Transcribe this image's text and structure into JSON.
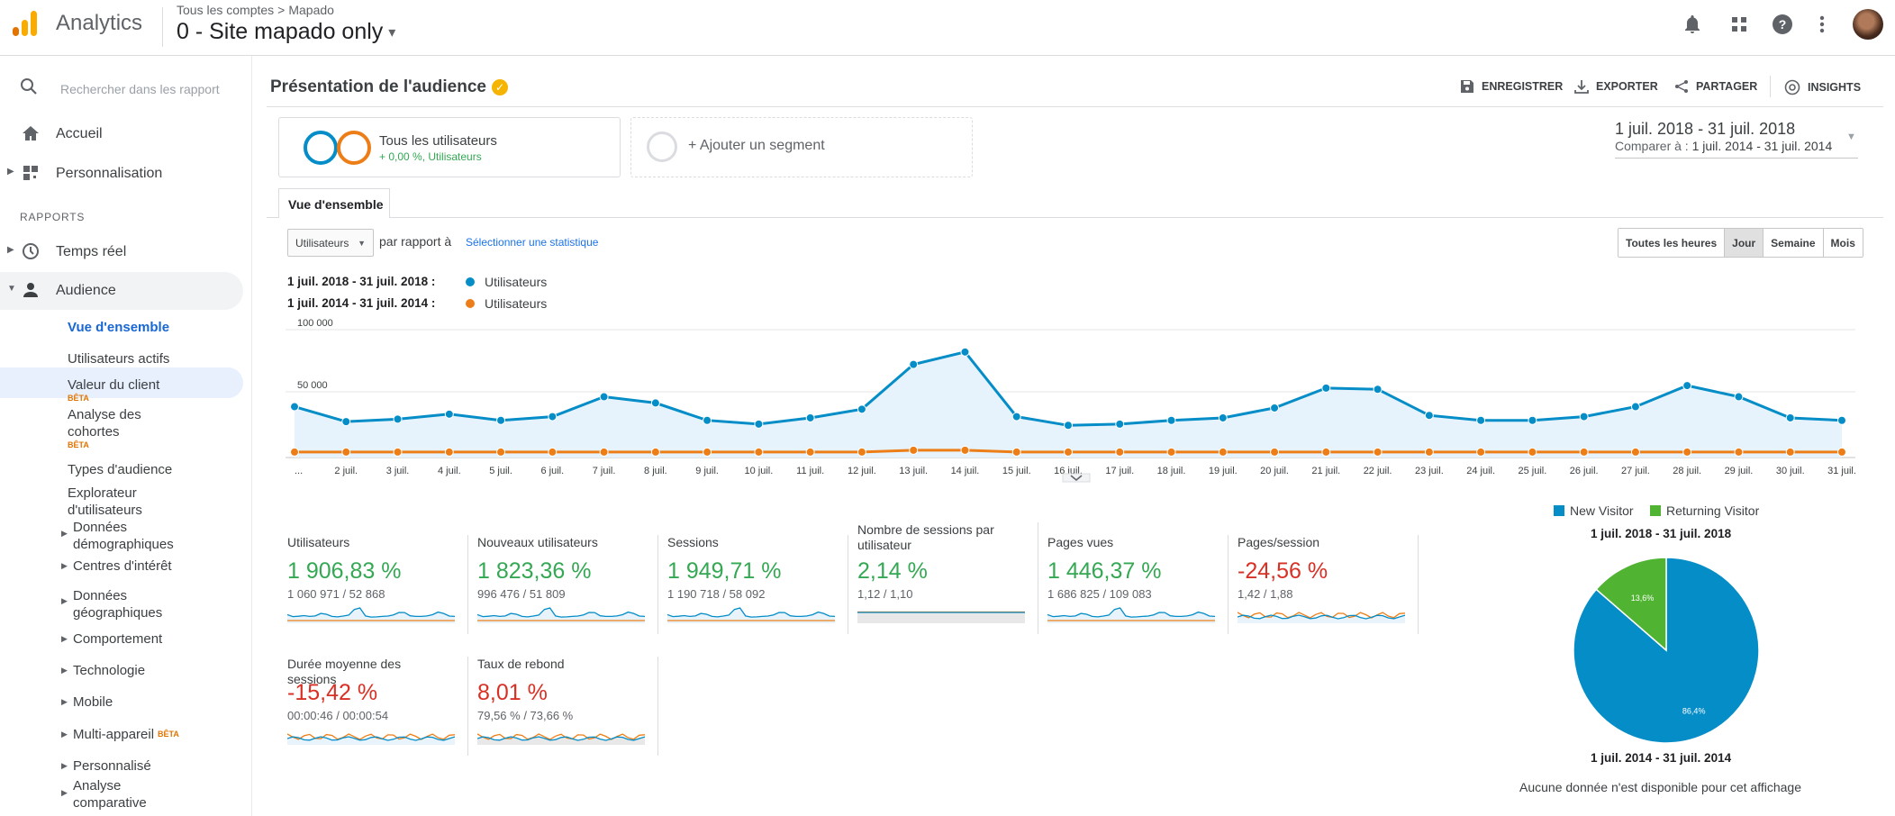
{
  "header": {
    "app_name": "Analytics",
    "breadcrumb": [
      "Tous les comptes",
      "Mapado"
    ],
    "property": "0 - Site mapado only"
  },
  "sidebar": {
    "search_placeholder": "Rechercher dans les rapport",
    "home": "Accueil",
    "personalisation": "Personnalisation",
    "section_reports": "RAPPORTS",
    "realtime": "Temps réel",
    "audience": "Audience",
    "audience_items": {
      "overview": "Vue d'ensemble",
      "active_users": "Utilisateurs actifs",
      "ltv": "Valeur du client",
      "cohort_1": "Analyse des",
      "cohort_2": "cohortes",
      "audiences": "Types d'audience",
      "explorer_1": "Explorateur",
      "explorer_2": "d'utilisateurs",
      "demographics_1": "Données",
      "demographics_2": "démographiques",
      "interests": "Centres d'intérêt",
      "geo_1": "Données",
      "geo_2": "géographiques",
      "behavior": "Comportement",
      "technology": "Technologie",
      "mobile": "Mobile",
      "multi_device": "Multi-appareil",
      "custom": "Personnalisé",
      "benchmark_1": "Analyse",
      "benchmark_2": "comparative"
    },
    "beta_label": "BÊTA"
  },
  "main": {
    "title": "Présentation de l'audience",
    "actions": {
      "save": "ENREGISTRER",
      "export": "EXPORTER",
      "share": "PARTAGER",
      "insights": "INSIGHTS"
    },
    "segment": {
      "name": "Tous les utilisateurs",
      "sub": "+ 0,00 %, Utilisateurs",
      "add": "+ Ajouter un segment"
    },
    "date": {
      "range": "1 juil. 2018 - 31 juil. 2018",
      "compare_prefix": "Comparer à :",
      "compare_range": "1 juil. 2014 - 31 juil. 2014"
    },
    "tab": "Vue d'ensemble",
    "metric_select": "Utilisateurs",
    "vs_label": "par rapport à",
    "select_stat": "Sélectionner une statistique",
    "granularity": [
      "Toutes les heures",
      "Jour",
      "Semaine",
      "Mois"
    ],
    "granularity_selected": "Jour",
    "legend": [
      {
        "range": "1 juil. 2018 - 31 juil. 2018 :",
        "label": "Utilisateurs",
        "color": "#058dc7"
      },
      {
        "range": "1 juil. 2014 - 31 juil. 2014 :",
        "label": "Utilisateurs",
        "color": "#ed7e17"
      }
    ]
  },
  "chart_data": {
    "type": "line",
    "ytick_labels": [
      "100 000",
      "50 000"
    ],
    "ylim": [
      0,
      100000
    ],
    "x": [
      "...",
      "2 juil.",
      "3 juil.",
      "4 juil.",
      "5 juil.",
      "6 juil.",
      "7 juil.",
      "8 juil.",
      "9 juil.",
      "10 juil.",
      "11 juil.",
      "12 juil.",
      "13 juil.",
      "14 juil.",
      "15 juil.",
      "16 juil.",
      "17 juil.",
      "18 juil.",
      "19 juil.",
      "20 juil.",
      "21 juil.",
      "22 juil.",
      "23 juil.",
      "24 juil.",
      "25 juil.",
      "26 juil.",
      "27 juil.",
      "28 juil.",
      "29 juil.",
      "30 juil.",
      "31 juil."
    ],
    "series": [
      {
        "values": [
          38000,
          26000,
          28000,
          32000,
          27000,
          30000,
          46000,
          41000,
          27000,
          24000,
          29000,
          36000,
          72000,
          82000,
          30000,
          23000,
          24000,
          27000,
          29000,
          37000,
          53000,
          52000,
          31000,
          27000,
          27000,
          30000,
          38000,
          55000,
          46000,
          29000,
          27000
        ],
        "color": "#058dc7"
      },
      {
        "values": [
          1500,
          1500,
          1500,
          1500,
          1500,
          1500,
          1500,
          1500,
          1500,
          1500,
          1500,
          1500,
          3000,
          3000,
          1500,
          1500,
          1500,
          1500,
          1500,
          1500,
          1500,
          1500,
          1500,
          1500,
          1500,
          1500,
          1500,
          1500,
          1500,
          1500,
          1500
        ],
        "color": "#ed7e17"
      }
    ],
    "grid": true
  },
  "tiles": [
    {
      "label": "Utilisateurs",
      "value": "1 906,83 %",
      "sub": "1 060 971 / 52 868",
      "trend": "pos"
    },
    {
      "label": "Nouveaux utilisateurs",
      "value": "1 823,36 %",
      "sub": "996 476 / 51 809",
      "trend": "pos"
    },
    {
      "label": "Sessions",
      "value": "1 949,71 %",
      "sub": "1 190 718 / 58 092",
      "trend": "pos"
    },
    {
      "label": "Nombre de sessions par utilisateur",
      "value": "2,14 %",
      "sub": "1,12 / 1,10",
      "trend": "pos"
    },
    {
      "label": "Pages vues",
      "value": "1 446,37 %",
      "sub": "1 686 825 / 109 083",
      "trend": "pos"
    },
    {
      "label": "Pages/session",
      "value": "-24,56 %",
      "sub": "1,42 / 1,88",
      "trend": "neg"
    },
    {
      "label": "Durée moyenne des sessions",
      "value": "-15,42 %",
      "sub": "00:00:46 / 00:00:54",
      "trend": "neg"
    },
    {
      "label": "Taux de rebond",
      "value": "8,01 %",
      "sub": "79,56 % / 73,66 %",
      "trend": "neg"
    }
  ],
  "pie": {
    "legend": [
      {
        "label": "New Visitor",
        "color": "#058dc7"
      },
      {
        "label": "Returning Visitor",
        "color": "#50b432"
      }
    ],
    "title_current": "1 juil. 2018 - 31 juil. 2018",
    "slices": [
      {
        "label": "86,4%",
        "value": 86.4,
        "color": "#058dc7"
      },
      {
        "label": "13,6%",
        "value": 13.6,
        "color": "#50b432"
      }
    ],
    "title_compare": "1 juil. 2014 - 31 juil. 2014",
    "no_data": "Aucune donnée n'est disponible pour cet affichage"
  }
}
